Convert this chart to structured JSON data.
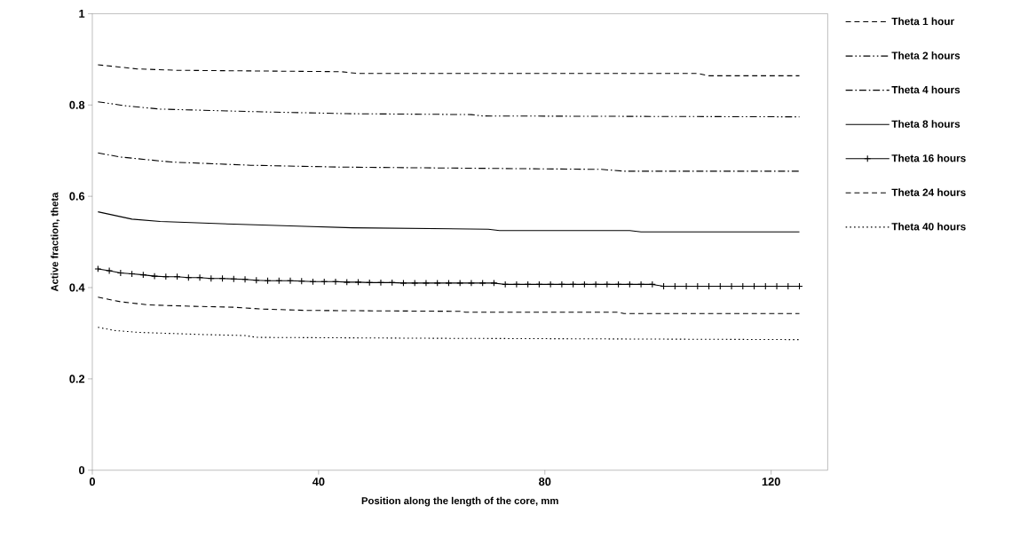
{
  "chart_data": {
    "type": "line",
    "xlabel": "Position along the length of the core,  mm",
    "ylabel": "Active fraction, theta",
    "xlim": [
      0,
      130
    ],
    "ylim": [
      0,
      1
    ],
    "xticks": [
      0,
      40,
      80,
      120
    ],
    "yticks": [
      0,
      0.2,
      0.4,
      0.6,
      0.8,
      1
    ],
    "legend": "right",
    "grid": false,
    "series": [
      {
        "name": "Theta 1 hour",
        "color": "#000000",
        "line_style": "dashed",
        "marker": "none",
        "x": [
          1,
          8,
          15,
          44,
          47,
          107,
          109,
          125
        ],
        "values": [
          0.888,
          0.879,
          0.876,
          0.873,
          0.869,
          0.869,
          0.864,
          0.864
        ]
      },
      {
        "name": "Theta 2 hours",
        "color": "#000000",
        "line_style": "dashdotdot",
        "marker": "none",
        "x": [
          1,
          6,
          12,
          30,
          45,
          67,
          69,
          125
        ],
        "values": [
          0.807,
          0.798,
          0.791,
          0.785,
          0.781,
          0.779,
          0.776,
          0.774
        ]
      },
      {
        "name": "Theta 4 hours",
        "color": "#000000",
        "line_style": "dashdot",
        "marker": "none",
        "x": [
          1,
          5,
          14,
          28,
          44,
          90,
          94,
          125
        ],
        "values": [
          0.695,
          0.686,
          0.675,
          0.668,
          0.664,
          0.659,
          0.655,
          0.655
        ]
      },
      {
        "name": "Theta 8 hours",
        "color": "#000000",
        "line_style": "solid",
        "marker": "none",
        "x": [
          1,
          7,
          12,
          25,
          35,
          46,
          70,
          72,
          95,
          97,
          125
        ],
        "values": [
          0.566,
          0.55,
          0.545,
          0.539,
          0.535,
          0.531,
          0.528,
          0.525,
          0.525,
          0.522,
          0.522
        ]
      },
      {
        "name": "Theta 16 hours",
        "color": "#000000",
        "line_style": "solid",
        "marker": "cross",
        "x": [
          1,
          3,
          5,
          7,
          9,
          11,
          13,
          15,
          17,
          19,
          21,
          23,
          25,
          27,
          29,
          31,
          33,
          35,
          37,
          39,
          41,
          43,
          45,
          47,
          49,
          51,
          53,
          55,
          57,
          59,
          61,
          63,
          65,
          67,
          69,
          71,
          73,
          75,
          77,
          79,
          81,
          83,
          85,
          87,
          89,
          91,
          93,
          95,
          97,
          99,
          101,
          103,
          105,
          107,
          109,
          111,
          113,
          115,
          117,
          119,
          121,
          123,
          125
        ],
        "values": [
          0.441,
          0.437,
          0.432,
          0.43,
          0.428,
          0.425,
          0.424,
          0.424,
          0.422,
          0.422,
          0.42,
          0.42,
          0.419,
          0.418,
          0.416,
          0.415,
          0.415,
          0.415,
          0.414,
          0.413,
          0.413,
          0.413,
          0.412,
          0.412,
          0.411,
          0.411,
          0.411,
          0.41,
          0.41,
          0.41,
          0.41,
          0.41,
          0.41,
          0.41,
          0.41,
          0.41,
          0.407,
          0.407,
          0.407,
          0.407,
          0.407,
          0.407,
          0.407,
          0.407,
          0.407,
          0.407,
          0.407,
          0.407,
          0.407,
          0.407,
          0.403,
          0.403,
          0.403,
          0.403,
          0.403,
          0.403,
          0.403,
          0.403,
          0.403,
          0.403,
          0.403,
          0.403,
          0.403
        ]
      },
      {
        "name": "Theta 24 hours",
        "color": "#000000",
        "line_style": "dashed",
        "marker": "none",
        "x": [
          1,
          5,
          10,
          18,
          25,
          30,
          38,
          65,
          66,
          93,
          94,
          125
        ],
        "values": [
          0.379,
          0.369,
          0.362,
          0.359,
          0.357,
          0.353,
          0.35,
          0.348,
          0.346,
          0.346,
          0.343,
          0.343
        ]
      },
      {
        "name": "Theta 40 hours",
        "color": "#000000",
        "line_style": "dotted",
        "marker": "none",
        "x": [
          1,
          4,
          8,
          20,
          27,
          29,
          60,
          125
        ],
        "values": [
          0.313,
          0.306,
          0.302,
          0.297,
          0.295,
          0.291,
          0.289,
          0.286
        ]
      }
    ]
  }
}
